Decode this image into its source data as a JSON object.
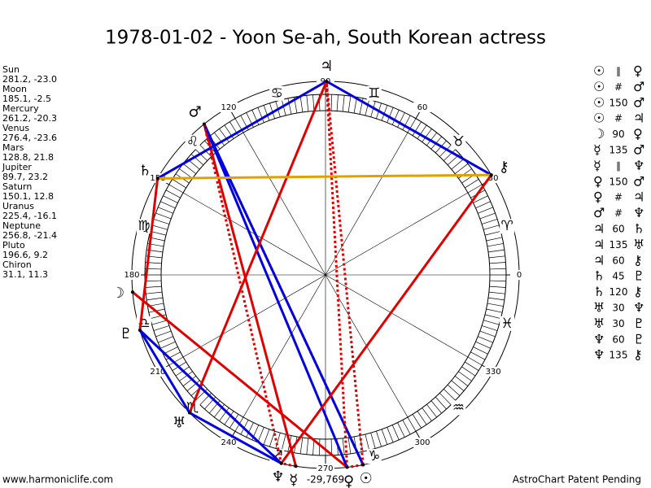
{
  "title": "1978-01-02 - Yoon Se-ah, South Korean actress",
  "planets": [
    {
      "name": "Sun",
      "glyph": "☉",
      "position": "281.2, -23.0"
    },
    {
      "name": "Moon",
      "glyph": "☽",
      "position": "185.1, -2.5"
    },
    {
      "name": "Mercury",
      "glyph": "☿",
      "position": "261.2, -20.3"
    },
    {
      "name": "Venus",
      "glyph": "♀",
      "position": "276.4, -23.6"
    },
    {
      "name": "Mars",
      "glyph": "♂",
      "position": "128.8, 21.8"
    },
    {
      "name": "Jupiter",
      "glyph": "♃",
      "position": "89.7, 23.2"
    },
    {
      "name": "Saturn",
      "glyph": "♄",
      "position": "150.1, 12.8"
    },
    {
      "name": "Uranus",
      "glyph": "♅",
      "position": "225.4, -16.1"
    },
    {
      "name": "Neptune",
      "glyph": "♆",
      "position": "256.8, -21.4"
    },
    {
      "name": "Pluto",
      "glyph": "♇",
      "position": "196.6, 9.2"
    },
    {
      "name": "Chiron",
      "glyph": "⚷",
      "position": "31.1, 11.3"
    }
  ],
  "zodiac": [
    "♈",
    "♉",
    "♊",
    "♋",
    "♌",
    "♍",
    "♎",
    "♏",
    "♐",
    "♑",
    "♒",
    "♓"
  ],
  "degree_labels": [
    0,
    30,
    60,
    90,
    120,
    150,
    180,
    210,
    240,
    270,
    300,
    330
  ],
  "aspects": [
    {
      "p1": "☉",
      "sym": "∥",
      "p2": "♀",
      "color": "#e00000",
      "dashed": true
    },
    {
      "p1": "☉",
      "sym": "#",
      "p2": "♂",
      "color": "#e00000",
      "dashed": true
    },
    {
      "p1": "☉",
      "sym": "150",
      "p2": "♂",
      "color": "#0000e0",
      "dashed": false
    },
    {
      "p1": "☉",
      "sym": "#",
      "p2": "♃",
      "color": "#e00000",
      "dashed": true
    },
    {
      "p1": "☽",
      "sym": "90",
      "p2": "♀",
      "color": "#e00000",
      "dashed": false
    },
    {
      "p1": "☿",
      "sym": "135",
      "p2": "♂",
      "color": "#e00000",
      "dashed": false
    },
    {
      "p1": "☿",
      "sym": "∥",
      "p2": "♆",
      "color": "#e00000",
      "dashed": true
    },
    {
      "p1": "♀",
      "sym": "150",
      "p2": "♂",
      "color": "#0000e0",
      "dashed": false
    },
    {
      "p1": "♀",
      "sym": "#",
      "p2": "♃",
      "color": "#e00000",
      "dashed": true
    },
    {
      "p1": "♂",
      "sym": "#",
      "p2": "♆",
      "color": "#e00000",
      "dashed": true
    },
    {
      "p1": "♃",
      "sym": "60",
      "p2": "♄",
      "color": "#0000e0",
      "dashed": false
    },
    {
      "p1": "♃",
      "sym": "135",
      "p2": "♅",
      "color": "#e00000",
      "dashed": false
    },
    {
      "p1": "♃",
      "sym": "60",
      "p2": "⚷",
      "color": "#0000e0",
      "dashed": false
    },
    {
      "p1": "♄",
      "sym": "45",
      "p2": "♇",
      "color": "#e00000",
      "dashed": false
    },
    {
      "p1": "♄",
      "sym": "120",
      "p2": "⚷",
      "color": "#e0a000",
      "dashed": false
    },
    {
      "p1": "♅",
      "sym": "30",
      "p2": "♆",
      "color": "#0000e0",
      "dashed": false
    },
    {
      "p1": "♅",
      "sym": "30",
      "p2": "♇",
      "color": "#0000e0",
      "dashed": false
    },
    {
      "p1": "♆",
      "sym": "60",
      "p2": "♇",
      "color": "#0000e0",
      "dashed": false
    },
    {
      "p1": "♆",
      "sym": "135",
      "p2": "⚷",
      "color": "#e00000",
      "dashed": false
    }
  ],
  "bottom_label": "-29,769",
  "footer_left": "www.harmoniclife.com",
  "footer_right": "AstroChart Patent Pending"
}
